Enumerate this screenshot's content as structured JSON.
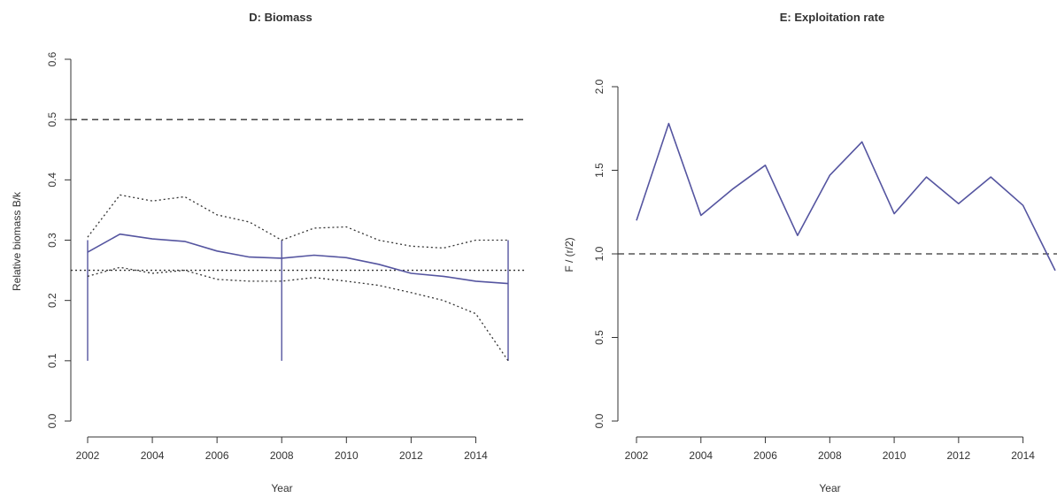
{
  "chart_data": [
    {
      "type": "line",
      "title": "D: Biomass",
      "xlabel": "Year",
      "ylabel": "Relative biomass B/k",
      "xlim": [
        2002,
        2015
      ],
      "ylim": [
        0,
        0.6
      ],
      "xticks": [
        "2002",
        "2004",
        "2006",
        "2008",
        "2010",
        "2012",
        "2014"
      ],
      "yticks": [
        "0.0",
        "0.1",
        "0.2",
        "0.3",
        "0.4",
        "0.5",
        "0.6"
      ],
      "grid": false,
      "colors": {
        "main": "#5555a0",
        "bounds": "#333333",
        "reference": "#333333"
      },
      "series": [
        {
          "role": "median",
          "style": "solid",
          "x": [
            2002,
            2003,
            2004,
            2005,
            2006,
            2007,
            2008,
            2009,
            2010,
            2011,
            2012,
            2013,
            2014,
            2015
          ],
          "values": [
            0.28,
            0.31,
            0.302,
            0.298,
            0.282,
            0.272,
            0.27,
            0.275,
            0.271,
            0.26,
            0.245,
            0.24,
            0.232,
            0.228
          ]
        },
        {
          "role": "upper",
          "style": "dotted",
          "x": [
            2002,
            2003,
            2004,
            2005,
            2006,
            2007,
            2008,
            2009,
            2010,
            2011,
            2012,
            2013,
            2014,
            2015
          ],
          "values": [
            0.305,
            0.375,
            0.365,
            0.372,
            0.342,
            0.33,
            0.3,
            0.32,
            0.322,
            0.3,
            0.29,
            0.287,
            0.3,
            0.3
          ]
        },
        {
          "role": "lower",
          "style": "dotted",
          "x": [
            2002,
            2003,
            2004,
            2005,
            2006,
            2007,
            2008,
            2009,
            2010,
            2011,
            2012,
            2013,
            2014,
            2015
          ],
          "values": [
            0.24,
            0.255,
            0.245,
            0.25,
            0.235,
            0.232,
            0.232,
            0.238,
            0.232,
            0.225,
            0.213,
            0.2,
            0.178,
            0.1
          ]
        }
      ],
      "vlines": [
        {
          "x": 2002,
          "from": 0.1,
          "to": 0.3
        },
        {
          "x": 2008,
          "from": 0.1,
          "to": 0.3
        },
        {
          "x": 2015,
          "from": 0.1,
          "to": 0.3
        }
      ],
      "hlines": [
        {
          "y": 0.5,
          "style": "dashed"
        },
        {
          "y": 0.25,
          "style": "dotted"
        }
      ]
    },
    {
      "type": "line",
      "title": "E: Exploitation rate",
      "xlabel": "Year",
      "ylabel": "F / (r/2)",
      "xlim": [
        2002,
        2015
      ],
      "ylim": [
        0,
        2.2
      ],
      "xticks": [
        "2002",
        "2004",
        "2006",
        "2008",
        "2010",
        "2012",
        "2014"
      ],
      "yticks": [
        "0.0",
        "0.5",
        "1.0",
        "1.5",
        "2.0"
      ],
      "grid": false,
      "colors": {
        "main": "#5555a0",
        "reference": "#333333"
      },
      "series": [
        {
          "role": "main",
          "style": "solid",
          "x": [
            2002,
            2003,
            2004,
            2005,
            2006,
            2007,
            2008,
            2009,
            2010,
            2011,
            2012,
            2013,
            2014,
            2015
          ],
          "values": [
            1.2,
            1.78,
            1.23,
            1.39,
            1.53,
            1.11,
            1.47,
            1.67,
            1.24,
            1.46,
            1.3,
            1.46,
            1.29,
            0.9
          ]
        }
      ],
      "vlines": [],
      "hlines": [
        {
          "y": 1.0,
          "style": "dashed"
        }
      ]
    }
  ]
}
